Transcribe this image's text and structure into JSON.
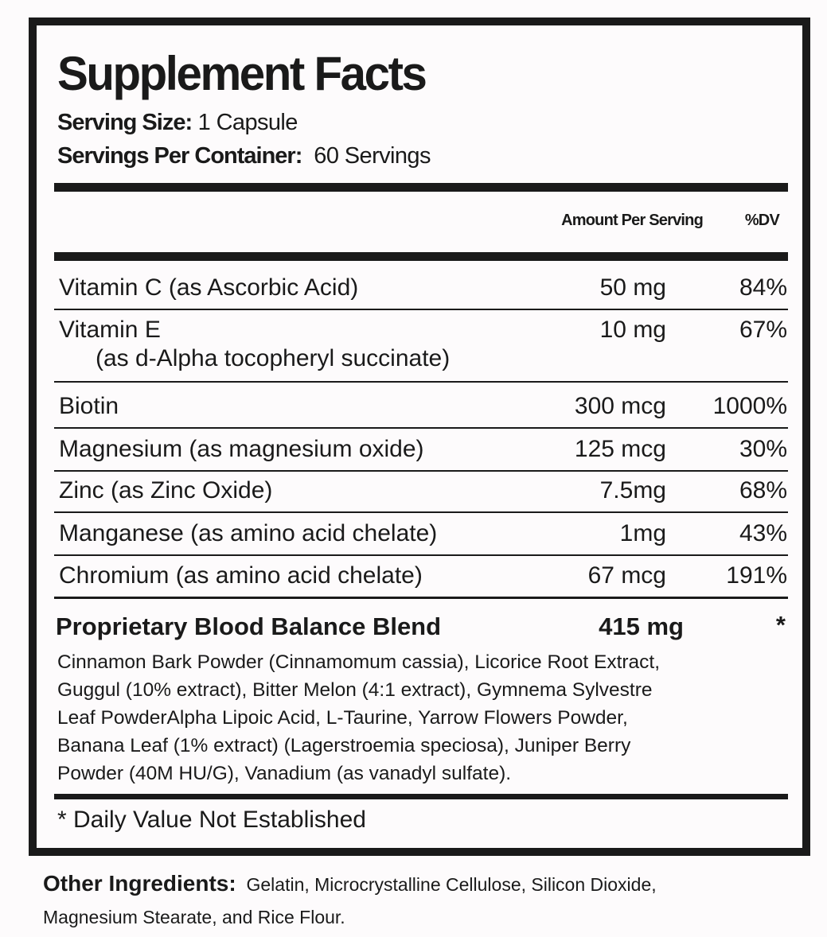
{
  "title": "Supplement Facts",
  "serving_size": {
    "label": "Serving Size:",
    "value": "1 Capsule"
  },
  "servings_per_container": {
    "label": "Servings Per Container:",
    "value": "60 Servings"
  },
  "columns": {
    "amount": "Amount Per Serving",
    "dv": "%DV"
  },
  "rows": [
    {
      "name": "Vitamin C (as Ascorbic Acid)",
      "amount": "50 mg",
      "dv": "84%"
    },
    {
      "name": "Vitamin E",
      "sub": "(as d-Alpha tocopheryl succinate)",
      "amount": "10 mg",
      "dv": "67%"
    },
    {
      "name": "Biotin",
      "amount": "300 mcg",
      "dv": "1000%"
    },
    {
      "name": "Magnesium (as magnesium oxide)",
      "amount": "125 mcg",
      "dv": "30%"
    },
    {
      "name": "Zinc (as Zinc Oxide)",
      "amount": "7.5mg",
      "dv": "68%"
    },
    {
      "name": "Manganese (as amino acid chelate)",
      "amount": "1mg",
      "dv": "43%"
    },
    {
      "name": "Chromium (as amino acid chelate)",
      "amount": "67 mcg",
      "dv": "191%"
    }
  ],
  "blend": {
    "name": "Proprietary Blood Balance Blend",
    "amount": "415 mg",
    "dv": "*",
    "ingredients_lines": [
      "Cinnamon Bark Powder (Cinnamomum cassia), Licorice Root Extract,",
      "Guggul (10% extract), Bitter Melon (4:1 extract), Gymnema Sylvestre",
      "Leaf PowderAlpha Lipoic Acid, L-Taurine, Yarrow Flowers Powder,",
      "Banana Leaf (1% extract) (Lagerstroemia speciosa), Juniper Berry",
      "Powder (40M HU/G), Vanadium (as vanadyl sulfate)."
    ]
  },
  "footnote": "* Daily Value Not Established",
  "other_ingredients": {
    "label": "Other Ingredients:",
    "line1": "Gelatin, Microcrystalline Cellulose, Silicon Dioxide,",
    "line2": "Magnesium Stearate, and Rice Flour."
  }
}
